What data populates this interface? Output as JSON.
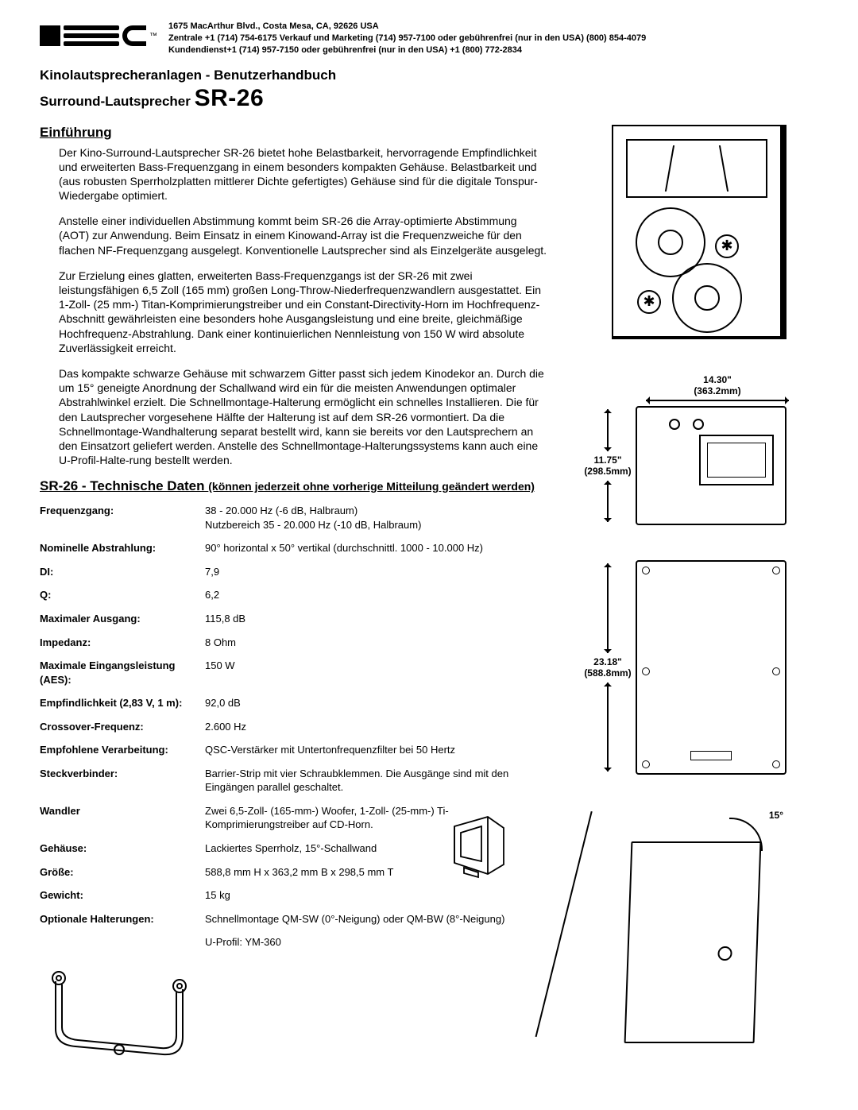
{
  "header": {
    "brand": "QSC",
    "trademark": "™",
    "address_line1": "1675 MacArthur Blvd., Costa Mesa, CA, 92626 USA",
    "address_line2": "Zentrale +1 (714) 754-6175 Verkauf und Marketing (714) 957-7100 oder gebührenfrei (nur in den USA) (800) 854-4079",
    "address_line3": "Kundendienst+1 (714) 957-7150 oder gebührenfrei (nur in den USA) +1 (800) 772-2834"
  },
  "doc_title": "Kinolautsprecheranlagen - Benutzerhandbuch",
  "product_prefix": "Surround-Lautsprecher ",
  "product_name": "SR-26",
  "intro_heading": "Einführung",
  "intro_paras": [
    "Der Kino-Surround-Lautsprecher SR-26 bietet hohe Belastbarkeit, hervorragende Empfindlichkeit und erweiterten Bass-Frequenzgang in einem besonders kompakten Gehäuse. Belastbarkeit und (aus robusten Sperrholzplatten mittlerer Dichte gefertigtes) Gehäuse sind für die digitale Tonspur-Wiedergabe optimiert.",
    "Anstelle einer individuellen Abstimmung kommt beim SR-26 die Array-optimierte Abstimmung (AOT) zur Anwendung. Beim Einsatz in einem Kinowand-Array ist die Frequenzweiche für den flachen NF-Frequenzgang ausgelegt. Konventionelle Lautsprecher sind als Einzelgeräte ausgelegt.",
    "Zur Erzielung eines glatten, erweiterten Bass-Frequenzgangs ist der SR-26 mit zwei leistungsfähigen 6,5 Zoll (165 mm) großen Long-Throw-Niederfrequenzwandlern ausgestattet. Ein 1-Zoll- (25 mm-) Titan-Komprimierungstreiber und ein Constant-Directivity-Horn im Hochfrequenz-Abschnitt gewährleisten eine besonders hohe Ausgangsleistung und eine breite, gleichmäßige Hochfrequenz-Abstrahlung. Dank einer kontinuierlichen Nennleistung von 150 W wird absolute Zuverlässigkeit erreicht.",
    "Das kompakte schwarze Gehäuse mit schwarzem Gitter passt sich jedem Kinodekor an. Durch die um 15° geneigte Anordnung der Schallwand wird ein für die meisten Anwendungen optimaler Abstrahlwinkel erzielt. Die Schnellmontage-Halterung ermöglicht ein schnelles Installieren. Die für den Lautsprecher vorgesehene Hälfte der Halterung ist auf dem SR-26 vormontiert. Da die Schnellmontage-Wandhalterung separat bestellt wird, kann sie bereits vor den Lautsprechern an den Einsatzort geliefert werden. Anstelle des Schnellmontage-Halterungssystems kann auch eine U-Profil-Halte-rung bestellt werden."
  ],
  "specs_title_main": "SR-26 - Technische Daten ",
  "specs_title_sub": "(können jederzeit ohne vorherige Mitteilung geändert werden)",
  "specs": [
    {
      "label": "Frequenzgang:",
      "value": "38 - 20.000 Hz (-6 dB, Halbraum)\nNutzbereich 35 - 20.000 Hz (-10 dB, Halbraum)"
    },
    {
      "label": "Nominelle Abstrahlung:",
      "value": "90° horizontal x 50° vertikal (durchschnittl. 1000 - 10.000 Hz)"
    },
    {
      "label": "DI:",
      "value": "7,9"
    },
    {
      "label": "Q:",
      "value": "6,2"
    },
    {
      "label": "Maximaler Ausgang:",
      "value": "115,8 dB"
    },
    {
      "label": "Impedanz:",
      "value": "8 Ohm"
    },
    {
      "label": "Maximale Eingangsleistung (AES):",
      "value": "150 W"
    },
    {
      "label": "Empfindlichkeit (2,83 V, 1 m):",
      "value": "92,0 dB"
    },
    {
      "label": "Crossover-Frequenz:",
      "value": "2.600 Hz"
    },
    {
      "label": "Empfohlene Verarbeitung:",
      "value": "QSC-Verstärker mit Untertonfrequenzfilter bei 50 Hertz"
    },
    {
      "label": "Steckverbinder:",
      "value": "Barrier-Strip mit vier Schraubklemmen. Die Ausgänge sind mit den Eingängen parallel geschaltet."
    },
    {
      "label": "Wandler",
      "value": "Zwei 6,5-Zoll- (165-mm-) Woofer, 1-Zoll- (25-mm-) Ti-Komprimierungstreiber auf CD-Horn."
    },
    {
      "label": "Gehäuse:",
      "value": "Lackiertes Sperrholz, 15°-Schallwand"
    },
    {
      "label": "Größe:",
      "value": "588,8 mm H x 363,2 mm B x 298,5 mm T"
    },
    {
      "label": "Gewicht:",
      "value": "15 kg"
    },
    {
      "label": "Optionale Halterungen:",
      "value": "Schnellmontage QM-SW (0°-Neigung) oder QM-BW (8°-Neigung)"
    },
    {
      "label": "",
      "value": "U-Profil: YM-360"
    }
  ],
  "dims": {
    "width_label": "14.30\"",
    "width_mm": "(363.2mm)",
    "depth_label": "11.75\"",
    "depth_mm": "(298.5mm)",
    "height_label": "23.18\"",
    "height_mm": "(588.8mm)",
    "angle_label": "15°"
  }
}
